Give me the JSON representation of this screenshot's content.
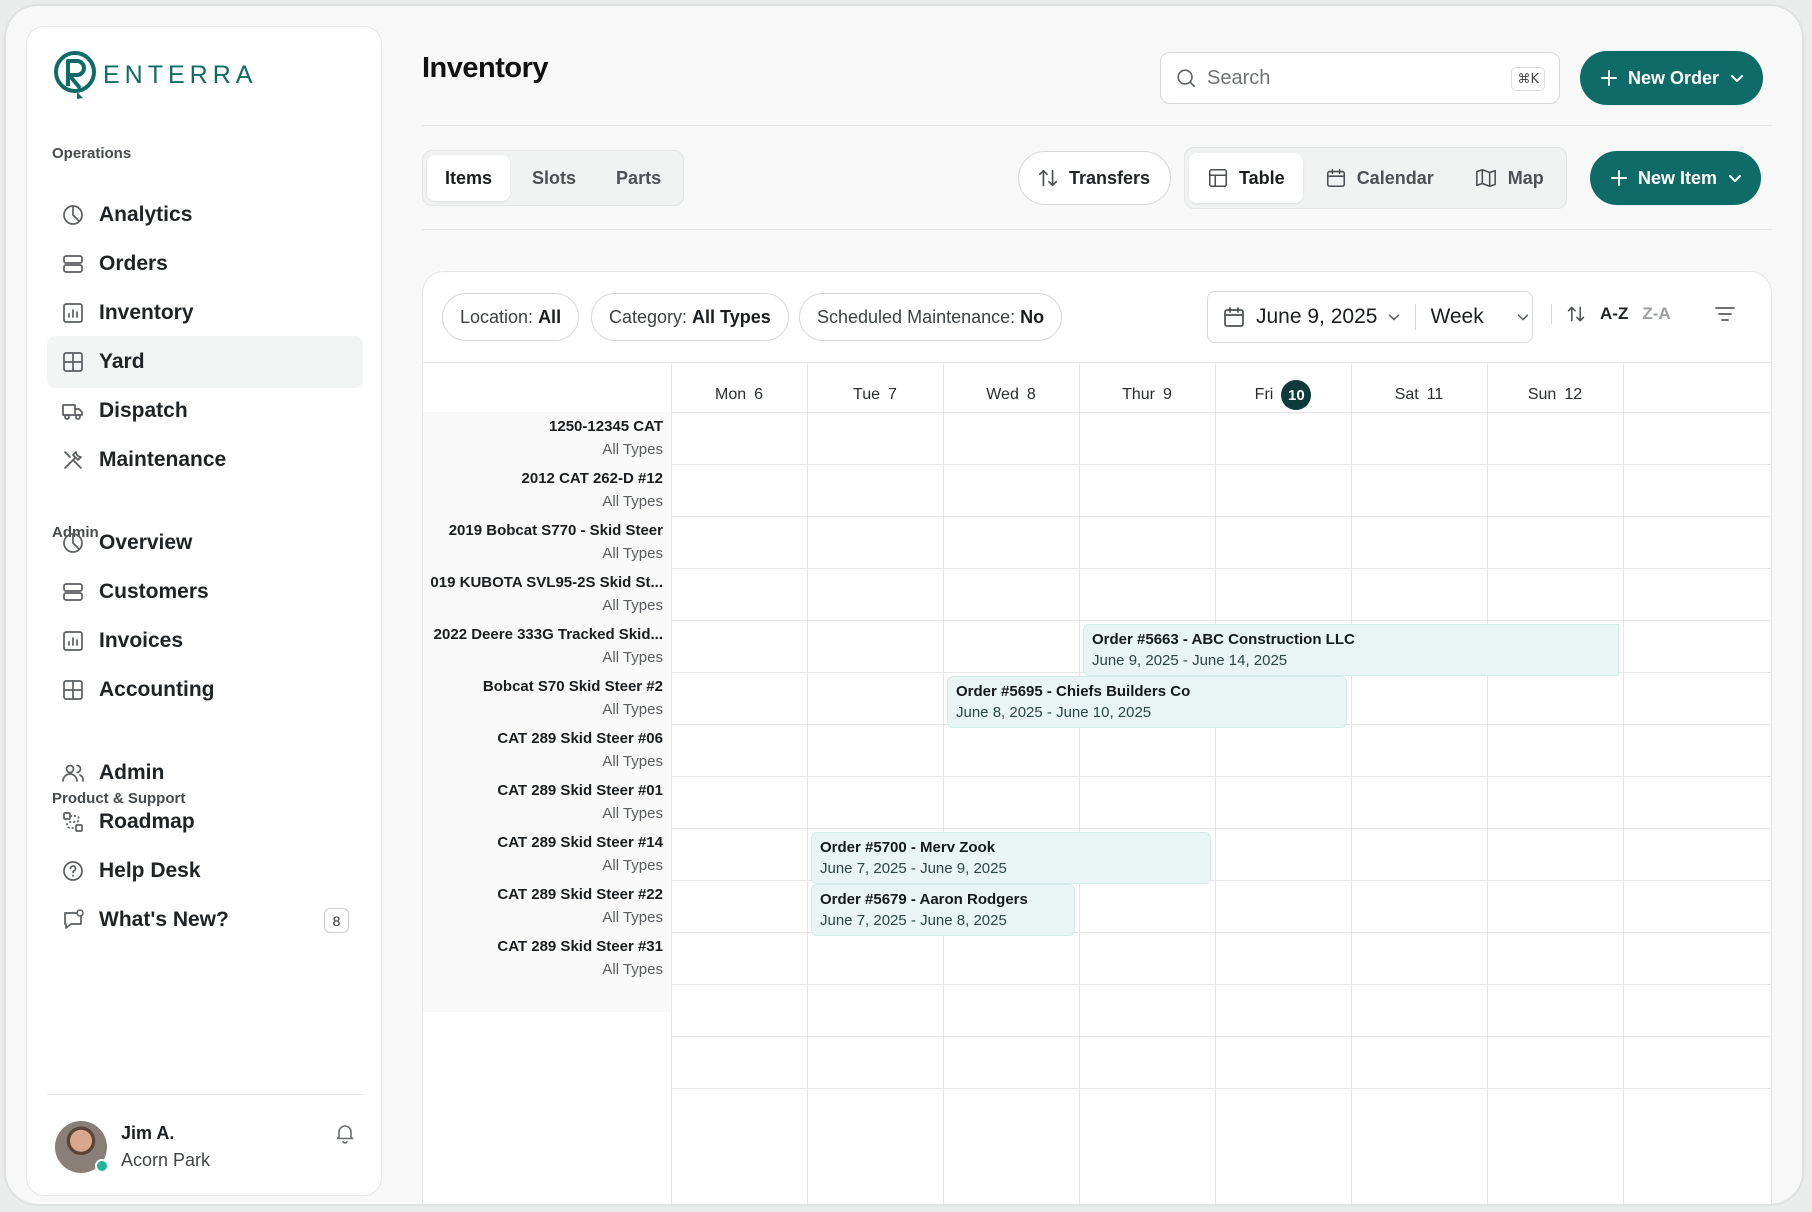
{
  "brand": {
    "name": "ENTERRA",
    "accent": "#0f6b68"
  },
  "sidebar": {
    "sections": [
      {
        "label": "Operations"
      },
      {
        "label": "Admin"
      },
      {
        "label": "Product & Support"
      }
    ],
    "items": [
      {
        "label": "Analytics",
        "icon": "pie-chart-icon"
      },
      {
        "label": "Orders",
        "icon": "server-icon"
      },
      {
        "label": "Inventory",
        "icon": "bar-chart-icon"
      },
      {
        "label": "Yard",
        "icon": "grid-icon",
        "active": true
      },
      {
        "label": "Dispatch",
        "icon": "truck-icon"
      },
      {
        "label": "Maintenance",
        "icon": "tools-icon"
      },
      {
        "label": "Overview",
        "icon": "pie-chart-icon"
      },
      {
        "label": "Customers",
        "icon": "server-icon"
      },
      {
        "label": "Invoices",
        "icon": "bar-chart-icon"
      },
      {
        "label": "Accounting",
        "icon": "grid-icon"
      },
      {
        "label": "Admin",
        "icon": "users-icon"
      },
      {
        "label": "Roadmap",
        "icon": "roadmap-icon"
      },
      {
        "label": "Help Desk",
        "icon": "help-icon"
      },
      {
        "label": "What's New?",
        "icon": "chat-icon",
        "badge": "8"
      }
    ],
    "user": {
      "name": "Jim A.",
      "org": "Acorn Park"
    }
  },
  "header": {
    "title": "Inventory",
    "search_placeholder": "Search",
    "search_shortcut": "⌘K",
    "new_order": "New Order"
  },
  "toolbar": {
    "tabs": [
      "Items",
      "Slots",
      "Parts"
    ],
    "active_tab": "Items",
    "transfers": "Transfers",
    "views": [
      "Table",
      "Calendar",
      "Map"
    ],
    "active_view": "Table",
    "new_item": "New Item"
  },
  "calendar": {
    "filters": [
      {
        "key": "Location:",
        "value": "All"
      },
      {
        "key": "Category:",
        "value": "All Types"
      },
      {
        "key": "Scheduled Maintenance:",
        "value": "No"
      }
    ],
    "date": "June 9, 2025",
    "range": "Week",
    "sort_asc": "A-Z",
    "sort_desc": "Z-A",
    "days": [
      {
        "label": "Mon",
        "num": "6"
      },
      {
        "label": "Tue",
        "num": "7"
      },
      {
        "label": "Wed",
        "num": "8"
      },
      {
        "label": "Thur",
        "num": "9"
      },
      {
        "label": "Fri",
        "num": "10",
        "today": true
      },
      {
        "label": "Sat",
        "num": "11"
      },
      {
        "label": "Sun",
        "num": "12"
      }
    ],
    "rows": [
      {
        "name": "1250-12345 CAT",
        "type": "All Types"
      },
      {
        "name": "2012 CAT 262-D #12",
        "type": "All Types"
      },
      {
        "name": "2019 Bobcat S770 - Skid Steer",
        "type": "All Types"
      },
      {
        "name": "019 KUBOTA SVL95-2S Skid St...",
        "type": "All Types"
      },
      {
        "name": "2022 Deere 333G Tracked Skid...",
        "type": "All Types"
      },
      {
        "name": "Bobcat S70 Skid Steer #2",
        "type": "All Types"
      },
      {
        "name": "CAT 289 Skid Steer #06",
        "type": "All Types"
      },
      {
        "name": "CAT 289 Skid Steer #01",
        "type": "All Types"
      },
      {
        "name": "CAT 289 Skid Steer #14",
        "type": "All Types"
      },
      {
        "name": "CAT 289 Skid Steer #22",
        "type": "All Types"
      },
      {
        "name": "CAT 289 Skid Steer #31",
        "type": "All Types"
      }
    ],
    "events": [
      {
        "title": "Order #5663 - ABC Construction LLC",
        "dates": "June 9, 2025 - June 14, 2025",
        "row": 4,
        "start_col": 3,
        "end_col": 7
      },
      {
        "title": "Order #5695 - Chiefs Builders Co",
        "dates": "June 8, 2025 - June 10, 2025",
        "row": 5,
        "start_col": 2,
        "end_col": 5
      },
      {
        "title": "Order #5700 - Merv Zook",
        "dates": "June 7, 2025 - June 9, 2025",
        "row": 8,
        "start_col": 1,
        "end_col": 4
      },
      {
        "title": "Order #5679 - Aaron Rodgers",
        "dates": "June 7, 2025 - June 8, 2025",
        "row": 9,
        "start_col": 1,
        "end_col": 3
      }
    ]
  }
}
